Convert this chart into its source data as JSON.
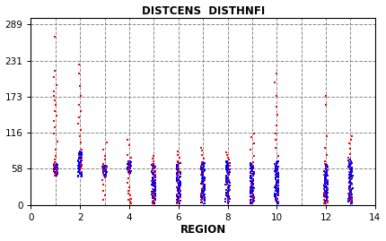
{
  "title": "DISTCENS  DISTHNFI",
  "xlabel": "REGION",
  "xlim": [
    0,
    14
  ],
  "ylim": [
    0,
    300
  ],
  "yticks": [
    0,
    58,
    116,
    173,
    231,
    289
  ],
  "xticks": [
    0,
    2,
    4,
    6,
    8,
    10,
    12,
    14
  ],
  "bg_color": "#ffffff",
  "regions": [
    1,
    2,
    3,
    4,
    5,
    6,
    7,
    8,
    9,
    10,
    12,
    13
  ],
  "blue_clusters": {
    "1": {
      "min": 47,
      "max": 65,
      "n": 40
    },
    "2": {
      "min": 45,
      "max": 85,
      "n": 50
    },
    "3": {
      "min": 44,
      "max": 63,
      "n": 35
    },
    "4": {
      "min": 50,
      "max": 70,
      "n": 40
    },
    "5": {
      "min": 2,
      "max": 65,
      "n": 80
    },
    "6": {
      "min": 2,
      "max": 68,
      "n": 80
    },
    "7": {
      "min": 2,
      "max": 68,
      "n": 80
    },
    "8": {
      "min": 2,
      "max": 70,
      "n": 80
    },
    "9": {
      "min": 2,
      "max": 68,
      "n": 80
    },
    "10": {
      "min": 2,
      "max": 70,
      "n": 80
    },
    "12": {
      "min": 2,
      "max": 66,
      "n": 80
    },
    "13": {
      "min": 2,
      "max": 72,
      "n": 80
    }
  },
  "red_clusters": {
    "1": [
      47,
      50,
      52,
      55,
      57,
      59,
      62,
      65,
      68,
      72,
      78,
      88,
      102,
      115,
      125,
      135,
      143,
      150,
      160,
      168,
      175,
      182,
      192,
      205,
      215,
      270
    ],
    "2": [
      52,
      58,
      62,
      66,
      72,
      78,
      88,
      100,
      110,
      120,
      130,
      140,
      150,
      160,
      175,
      190,
      210,
      225
    ],
    "3": [
      8,
      15,
      22,
      32,
      40,
      45,
      50,
      55,
      58,
      60,
      62,
      65,
      72,
      78,
      88,
      100
    ],
    "4": [
      2,
      5,
      8,
      10,
      15,
      18,
      22,
      28,
      35,
      42,
      50,
      55,
      58,
      62,
      68,
      75,
      80,
      95,
      105
    ],
    "5": [
      2,
      5,
      8,
      12,
      16,
      20,
      26,
      32,
      38,
      44,
      48,
      52,
      55,
      58,
      62,
      66,
      70,
      74,
      78
    ],
    "6": [
      2,
      5,
      8,
      12,
      16,
      22,
      28,
      35,
      42,
      48,
      52,
      56,
      60,
      65,
      70,
      75,
      80,
      85
    ],
    "7": [
      5,
      8,
      12,
      18,
      25,
      32,
      40,
      48,
      55,
      62,
      68,
      74,
      80,
      87,
      92
    ],
    "8": [
      5,
      10,
      16,
      24,
      32,
      40,
      48,
      55,
      62,
      67,
      72,
      76,
      80,
      84
    ],
    "9": [
      5,
      8,
      12,
      18,
      25,
      32,
      40,
      48,
      55,
      62,
      68,
      78,
      88,
      98,
      108,
      115
    ],
    "10": [
      5,
      10,
      18,
      28,
      40,
      54,
      65,
      78,
      92,
      105,
      115,
      128,
      145,
      158,
      175,
      196,
      210
    ],
    "12": [
      2,
      4,
      6,
      8,
      12,
      16,
      20,
      26,
      32,
      40,
      48,
      55,
      60,
      65,
      70,
      80,
      92,
      110,
      160,
      175
    ],
    "13": [
      5,
      8,
      10,
      14,
      18,
      24,
      32,
      42,
      52,
      60,
      68,
      75,
      82,
      90,
      98,
      105,
      110
    ]
  },
  "blue_jitter": 0.08,
  "red_jitter": 0.08,
  "point_size": 1.8
}
